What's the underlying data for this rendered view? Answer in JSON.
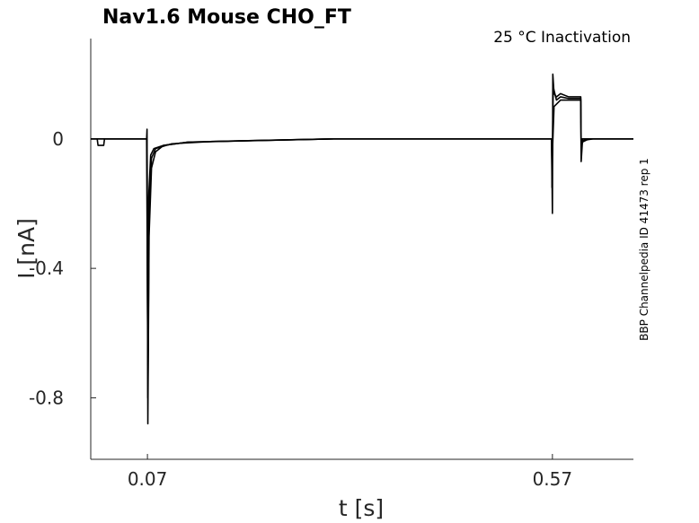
{
  "chart_data": {
    "type": "line",
    "title": "Nav1.6  Mouse  CHO_FT",
    "condition": "25 °C  Inactivation",
    "xlabel": "t [s]",
    "ylabel": "I [nA]",
    "side_label": "BBP Channelpedia ID 41473 rep 1",
    "xlim": [
      0.0,
      0.67
    ],
    "ylim": [
      -0.99,
      0.31
    ],
    "x_ticks": [
      0.07,
      0.57
    ],
    "x_tick_labels": [
      "0.07",
      "0.57"
    ],
    "y_ticks": [
      0,
      -0.4,
      -0.8
    ],
    "y_tick_labels": [
      "0",
      "-0.4",
      "-0.8"
    ],
    "grid": false,
    "line_color": "#000000",
    "series": [
      {
        "x": [
          0.0,
          0.008,
          0.009,
          0.016,
          0.017,
          0.069,
          0.0695,
          0.0705,
          0.072,
          0.075,
          0.08,
          0.09,
          0.12,
          0.2,
          0.3,
          0.4,
          0.5,
          0.569,
          0.57,
          0.5705,
          0.572,
          0.575,
          0.58,
          0.59,
          0.605,
          0.6055,
          0.607,
          0.615,
          0.62,
          0.67
        ],
        "y": [
          0.0,
          0.0,
          -0.02,
          -0.02,
          0.0,
          0.0,
          0.03,
          -0.88,
          -0.3,
          -0.09,
          -0.04,
          -0.02,
          -0.01,
          -0.005,
          0.0,
          0.0,
          0.0,
          0.0,
          -0.23,
          0.2,
          0.14,
          0.13,
          0.14,
          0.13,
          0.13,
          -0.07,
          -0.01,
          0.0,
          0.0,
          0.0
        ]
      },
      {
        "x": [
          0.0,
          0.069,
          0.0695,
          0.0705,
          0.072,
          0.075,
          0.08,
          0.1,
          0.15,
          0.3,
          0.5,
          0.569,
          0.5695,
          0.571,
          0.575,
          0.58,
          0.59,
          0.605,
          0.6055,
          0.607,
          0.62,
          0.67
        ],
        "y": [
          0.0,
          0.0,
          0.0,
          -0.8,
          -0.22,
          -0.06,
          -0.03,
          -0.015,
          -0.008,
          0.0,
          0.0,
          0.0,
          -0.15,
          0.16,
          0.12,
          0.13,
          0.125,
          0.125,
          -0.04,
          -0.005,
          0.0,
          0.0
        ]
      },
      {
        "x": [
          0.0,
          0.069,
          0.0705,
          0.0715,
          0.074,
          0.078,
          0.09,
          0.12,
          0.3,
          0.569,
          0.5695,
          0.572,
          0.576,
          0.58,
          0.6,
          0.605,
          0.6055,
          0.607,
          0.67
        ],
        "y": [
          0.0,
          0.0,
          -0.7,
          -0.18,
          -0.05,
          -0.03,
          -0.02,
          -0.01,
          0.0,
          0.0,
          -0.08,
          0.1,
          0.11,
          0.12,
          0.12,
          0.12,
          -0.02,
          0.0,
          0.0
        ]
      }
    ]
  }
}
